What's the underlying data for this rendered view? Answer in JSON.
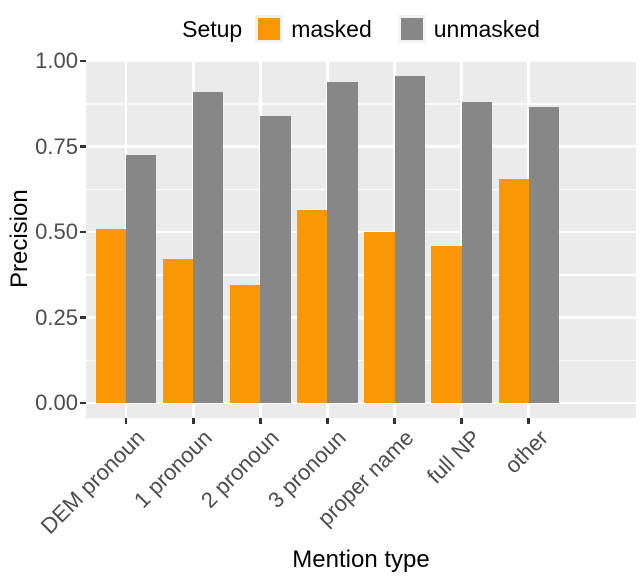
{
  "legend": {
    "title": "Setup",
    "items": [
      {
        "label": "masked",
        "color": "#FA9705"
      },
      {
        "label": "unmasked",
        "color": "#878787"
      }
    ]
  },
  "chart_data": {
    "type": "bar",
    "title": "",
    "xlabel": "Mention type",
    "ylabel": "Precision",
    "categories": [
      "DEM pronoun",
      "1 pronoun",
      "2 pronoun",
      "3 pronoun",
      "proper name",
      "full NP",
      "other"
    ],
    "series": [
      {
        "name": "masked",
        "color": "#FA9705",
        "values": [
          0.51,
          0.42,
          0.345,
          0.565,
          0.5,
          0.46,
          0.655
        ]
      },
      {
        "name": "unmasked",
        "color": "#878787",
        "values": [
          0.725,
          0.91,
          0.84,
          0.94,
          0.955,
          0.88,
          0.865
        ]
      }
    ],
    "ylim": [
      0,
      1
    ],
    "yticks": [
      0,
      0.25,
      0.5,
      0.75,
      1
    ],
    "ytick_labels": [
      "0.00",
      "0.25",
      "0.50",
      "0.75",
      "1.00"
    ],
    "yticks_minor": [
      0.125,
      0.375,
      0.625,
      0.875
    ],
    "legend_position": "top",
    "grid": true,
    "panel_background": "#EBEBEB",
    "gridline_color": "#FFFFFF",
    "tick_text_color": "#4D4D4D",
    "axis_title_color": "#000000"
  }
}
